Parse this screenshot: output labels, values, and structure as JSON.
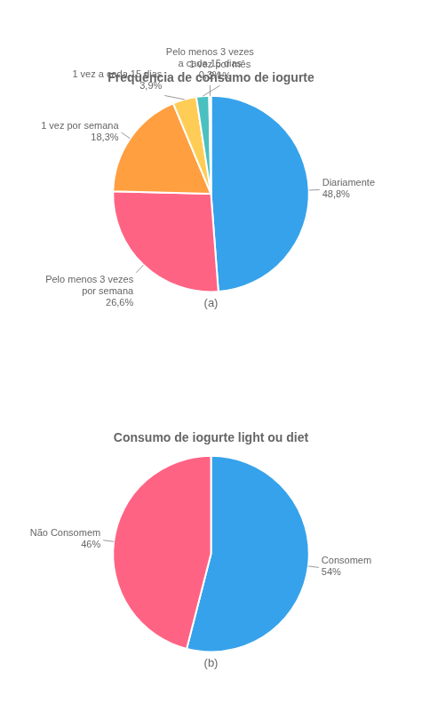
{
  "chart_data": [
    {
      "type": "pie",
      "title": "Frequência de consumo de iogurte",
      "categories": [
        "Diariamente",
        "Pelo menos 3 vezes por semana",
        "1 vez por semana",
        "1 vez a cada 15 dias",
        "1 vez por mês",
        "Pelo menos 3 vezes a cada 15 dias"
      ],
      "values": [
        48.8,
        26.6,
        18.3,
        3.9,
        2.1,
        0.3
      ],
      "value_labels": [
        "48,8%",
        "26,6%",
        "18,3%",
        "3,9%",
        "2,1%",
        "0,3%"
      ],
      "data_labels": true,
      "annotations": [
        "(a)"
      ]
    },
    {
      "type": "pie",
      "title": "Consumo de iogurte light ou diet",
      "categories": [
        "Consomem",
        "Não Consomem"
      ],
      "values": [
        54,
        46
      ],
      "value_labels": [
        "54%",
        "46%"
      ],
      "data_labels": true,
      "annotations": [
        "(b)"
      ]
    }
  ]
}
